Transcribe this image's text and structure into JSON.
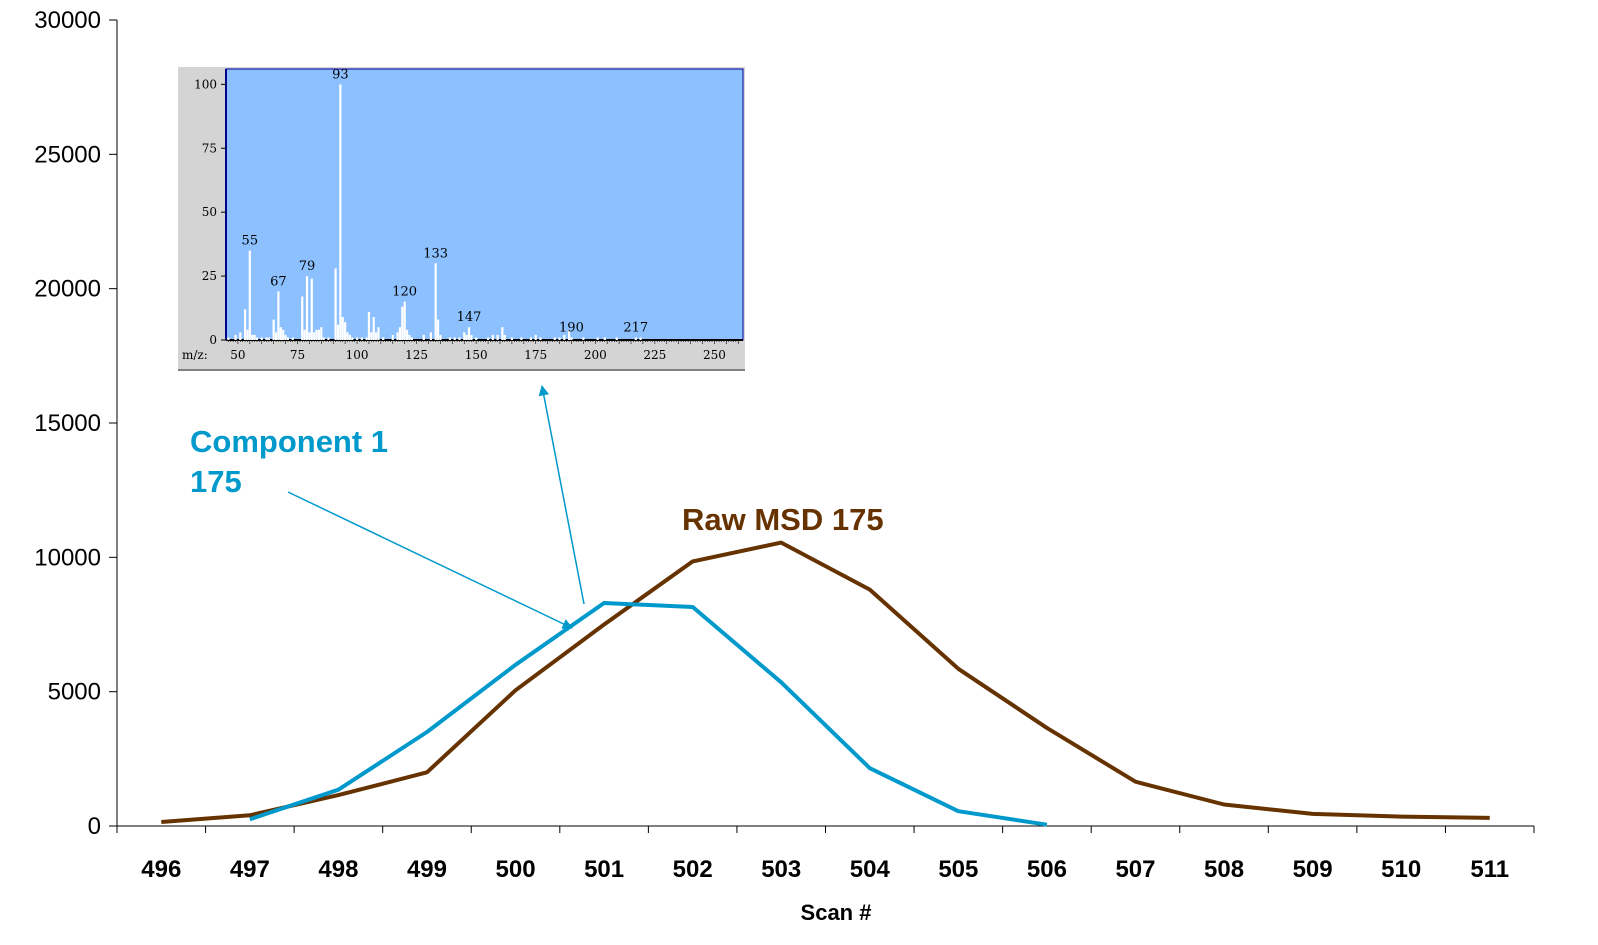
{
  "chart_data": {
    "type": "line",
    "xlabel": "Scan #",
    "ylabel": "",
    "ylim": [
      0,
      30000
    ],
    "yticks": [
      0,
      5000,
      10000,
      15000,
      20000,
      25000,
      30000
    ],
    "categories": [
      "496",
      "497",
      "498",
      "499",
      "500",
      "501",
      "502",
      "503",
      "504",
      "505",
      "506",
      "507",
      "508",
      "509",
      "510",
      "511"
    ],
    "series": [
      {
        "name": "Raw MSD 175",
        "color": "#663300",
        "values": [
          150,
          400,
          1150,
          2000,
          5050,
          7500,
          9850,
          10550,
          8800,
          5850,
          3650,
          1650,
          800,
          450,
          350,
          300
        ]
      },
      {
        "name": "Component 1 175",
        "color": "#0099CC",
        "values": [
          null,
          250,
          1350,
          3500,
          6000,
          8300,
          8150,
          5350,
          2150,
          550,
          50,
          null,
          null,
          null,
          null,
          null
        ]
      }
    ],
    "annotations": [
      {
        "text_lines": [
          "Component 1",
          "175"
        ],
        "color": "#0099CC",
        "points_to": "Component 1 175"
      },
      {
        "text_lines": [
          "Raw MSD 175"
        ],
        "color": "#663300",
        "points_to": "Raw MSD 175"
      }
    ],
    "inset": {
      "type": "bar",
      "background": "#8CC0FF",
      "xlabel_prefix": "m/z:",
      "xlim": [
        45,
        262
      ],
      "xticks": [
        50,
        75,
        100,
        125,
        150,
        175,
        200,
        225,
        250
      ],
      "yticks": [
        0,
        25,
        50,
        75,
        100
      ],
      "ylim": [
        0,
        106
      ],
      "peaks": [
        [
          46,
          1
        ],
        [
          49,
          2
        ],
        [
          51,
          3
        ],
        [
          53,
          12
        ],
        [
          54,
          4
        ],
        [
          55,
          35
        ],
        [
          56,
          2
        ],
        [
          57,
          2
        ],
        [
          58,
          1
        ],
        [
          60,
          1
        ],
        [
          62,
          1
        ],
        [
          63,
          1
        ],
        [
          65,
          8
        ],
        [
          66,
          3
        ],
        [
          67,
          19
        ],
        [
          68,
          5
        ],
        [
          69,
          4
        ],
        [
          70,
          2
        ],
        [
          71,
          1
        ],
        [
          73,
          1
        ],
        [
          77,
          17
        ],
        [
          78,
          4
        ],
        [
          79,
          25
        ],
        [
          80,
          3
        ],
        [
          81,
          24
        ],
        [
          82,
          3
        ],
        [
          83,
          4
        ],
        [
          84,
          4
        ],
        [
          85,
          5
        ],
        [
          86,
          1
        ],
        [
          88,
          1
        ],
        [
          91,
          28
        ],
        [
          92,
          6
        ],
        [
          93,
          100
        ],
        [
          94,
          9
        ],
        [
          95,
          7
        ],
        [
          96,
          3
        ],
        [
          97,
          2
        ],
        [
          98,
          1
        ],
        [
          100,
          1
        ],
        [
          102,
          1
        ],
        [
          104,
          1
        ],
        [
          105,
          11
        ],
        [
          106,
          3
        ],
        [
          107,
          9
        ],
        [
          108,
          3
        ],
        [
          109,
          5
        ],
        [
          111,
          1
        ],
        [
          115,
          2
        ],
        [
          117,
          3
        ],
        [
          118,
          5
        ],
        [
          119,
          13
        ],
        [
          120,
          15
        ],
        [
          121,
          4
        ],
        [
          122,
          2
        ],
        [
          123,
          1
        ],
        [
          128,
          2
        ],
        [
          131,
          3
        ],
        [
          133,
          30
        ],
        [
          134,
          8
        ],
        [
          135,
          2
        ],
        [
          139,
          1
        ],
        [
          141,
          1
        ],
        [
          143,
          1
        ],
        [
          145,
          3
        ],
        [
          146,
          2
        ],
        [
          147,
          5
        ],
        [
          148,
          2
        ],
        [
          150,
          1
        ],
        [
          155,
          1
        ],
        [
          157,
          2
        ],
        [
          159,
          2
        ],
        [
          161,
          5
        ],
        [
          162,
          2
        ],
        [
          165,
          1
        ],
        [
          169,
          1
        ],
        [
          173,
          1
        ],
        [
          175,
          2
        ],
        [
          177,
          1
        ],
        [
          183,
          1
        ],
        [
          185,
          1
        ],
        [
          187,
          2
        ],
        [
          189,
          4
        ],
        [
          190,
          1
        ],
        [
          195,
          1
        ],
        [
          201,
          1
        ],
        [
          204,
          1
        ],
        [
          209,
          1
        ],
        [
          217,
          1
        ],
        [
          219,
          1
        ]
      ],
      "peak_labels": [
        {
          "mz": "55",
          "intensity": 35
        },
        {
          "mz": "67",
          "intensity": 19
        },
        {
          "mz": "79",
          "intensity": 25
        },
        {
          "mz": "93",
          "intensity": 100
        },
        {
          "mz": "120",
          "intensity": 15
        },
        {
          "mz": "133",
          "intensity": 30
        },
        {
          "mz": "147",
          "intensity": 5
        },
        {
          "mz": "190",
          "intensity": 1
        },
        {
          "mz": "217",
          "intensity": 1
        }
      ]
    }
  }
}
